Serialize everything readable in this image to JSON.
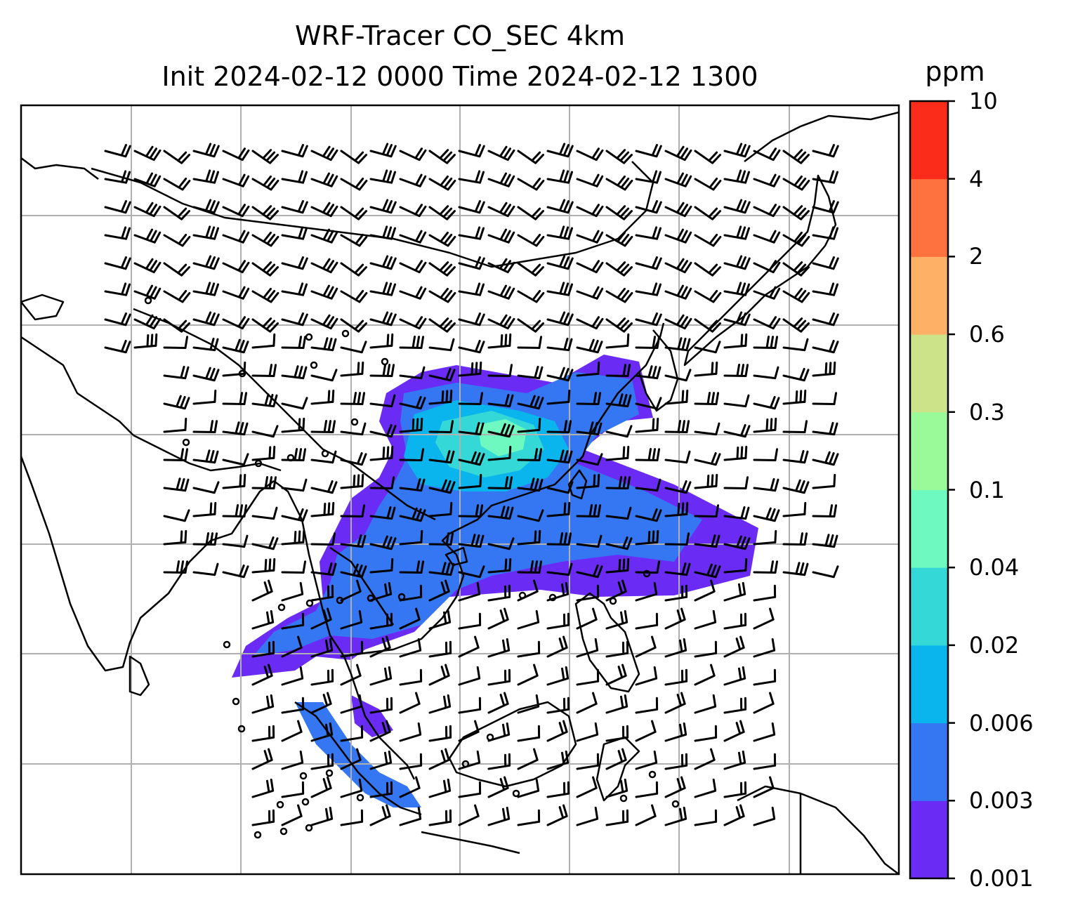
{
  "title": {
    "line1": "WRF-Tracer CO_SEC 4km",
    "line2": "Init 2024-02-12 0000 Time 2024-02-12 1300"
  },
  "colorbar": {
    "unit": "ppm",
    "levels": [
      "0.001",
      "0.003",
      "0.006",
      "0.02",
      "0.04",
      "0.1",
      "0.3",
      "0.6",
      "2",
      "4",
      "10"
    ],
    "colors": [
      "#6a2cf5",
      "#3577f2",
      "#0ab4ec",
      "#34d8d6",
      "#6ef9c0",
      "#9afa99",
      "#cde38a",
      "#fdb066",
      "#fe7240",
      "#fb2d1a"
    ]
  },
  "map": {
    "gridlines": true,
    "coastline_color": "#000000",
    "grid_color": "#b0b0b0",
    "wind_barbs": true
  }
}
